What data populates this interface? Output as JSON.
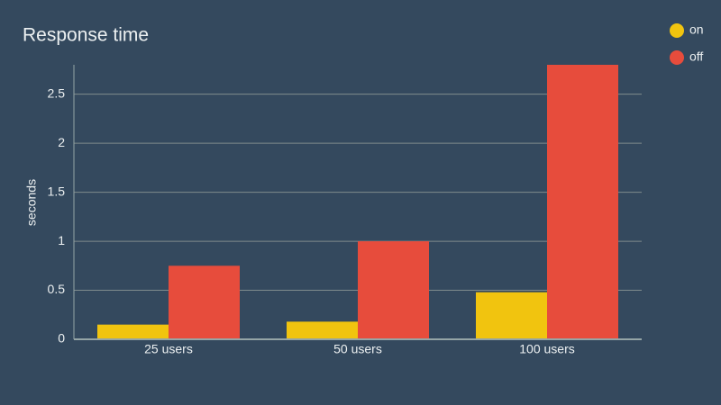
{
  "chart_data": {
    "type": "bar",
    "title": "Response time",
    "y_label": "seconds",
    "categories": [
      "25 users",
      "50 users",
      "100 users"
    ],
    "series": [
      {
        "name": "on",
        "color": "#f1c40f",
        "values": [
          0.15,
          0.18,
          0.48
        ]
      },
      {
        "name": "off",
        "color": "#e74c3c",
        "values": [
          0.75,
          1.0,
          2.8
        ]
      }
    ],
    "ylim": [
      0,
      2.8
    ],
    "yticks": [
      0,
      0.5,
      1,
      1.5,
      2,
      2.5
    ],
    "grid": true,
    "legend": "top-right"
  }
}
